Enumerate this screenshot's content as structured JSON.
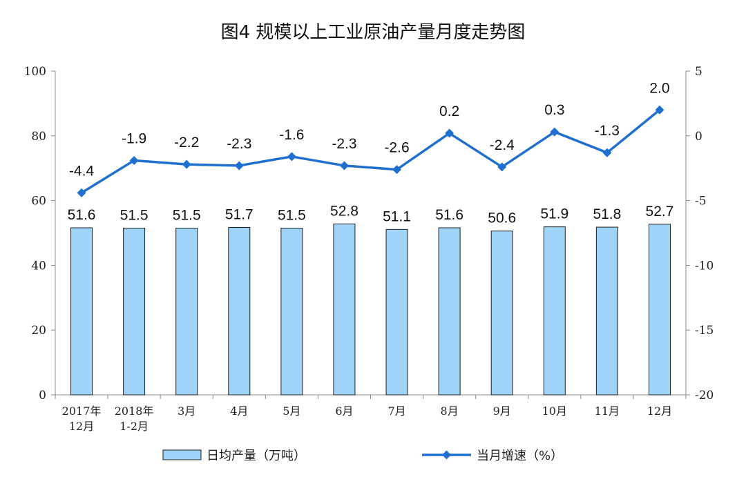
{
  "colors": {
    "bar_fill": "#9fd3f7",
    "bar_stroke": "#1f1f1f",
    "line": "#1f6fcf",
    "axis": "#888888"
  },
  "chart_data": {
    "type": "bar",
    "title": "图4  规模以上工业原油产量月度走势图",
    "categories": [
      [
        "2017年",
        "12月"
      ],
      [
        "2018年",
        "1-2月"
      ],
      [
        "3月"
      ],
      [
        "4月"
      ],
      [
        "5月"
      ],
      [
        "6月"
      ],
      [
        "7月"
      ],
      [
        "8月"
      ],
      [
        "9月"
      ],
      [
        "10月"
      ],
      [
        "11月"
      ],
      [
        "12月"
      ]
    ],
    "series": [
      {
        "name": "日均产量（万吨）",
        "type": "bar",
        "axis": "left",
        "values": [
          51.6,
          51.5,
          51.5,
          51.7,
          51.5,
          52.8,
          51.1,
          51.6,
          50.6,
          51.9,
          51.8,
          52.7
        ]
      },
      {
        "name": "当月增速（%）",
        "type": "line",
        "axis": "right",
        "values": [
          -4.4,
          -1.9,
          -2.2,
          -2.3,
          -1.6,
          -2.3,
          -2.6,
          0.2,
          -2.4,
          0.3,
          -1.3,
          2.0
        ]
      }
    ],
    "bar_labels": [
      "51.6",
      "51.5",
      "51.5",
      "51.7",
      "51.5",
      "52.8",
      "51.1",
      "51.6",
      "50.6",
      "51.9",
      "51.8",
      "52.7"
    ],
    "line_labels": [
      "-4.4",
      "-1.9",
      "-2.2",
      "-2.3",
      "-1.6",
      "-2.3",
      "-2.6",
      "0.2",
      "-2.4",
      "0.3",
      "-1.3",
      "2.0"
    ],
    "y_left": {
      "lim": [
        0,
        100
      ],
      "ticks": [
        "0",
        "20",
        "40",
        "60",
        "80",
        "100"
      ]
    },
    "y_right": {
      "lim": [
        -20,
        5
      ],
      "ticks": [
        "-20",
        "-15",
        "-10",
        "-5",
        "0",
        "5"
      ]
    },
    "grid": false,
    "legend_position": "bottom"
  }
}
